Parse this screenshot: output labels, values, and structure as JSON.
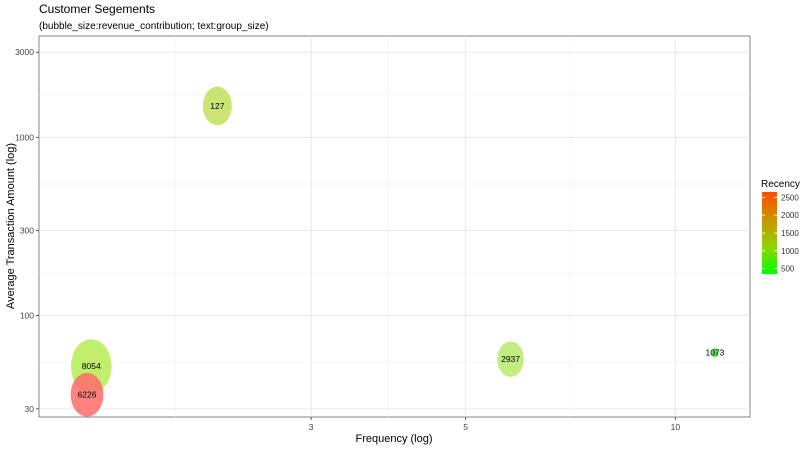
{
  "chart_data": {
    "type": "scatter",
    "title": "Customer Segements",
    "subtitle": "(bubble_size:revenue_contribution; text:group_size)",
    "xlabel": "Frequency (log)",
    "ylabel": "Average Transaction Amount (log)",
    "x_scale": "log",
    "y_scale": "log",
    "xlim": [
      1.22,
      12.8
    ],
    "ylim": [
      27,
      3700
    ],
    "x_ticks": [
      3,
      5,
      10
    ],
    "y_ticks": [
      30,
      100,
      300,
      1000,
      3000
    ],
    "grid": true,
    "legend": {
      "title": "Recency",
      "position": "right",
      "ticks": [
        500,
        1000,
        1500,
        2000,
        2500
      ],
      "range": [
        350,
        2650
      ],
      "colors": [
        "#00ff00",
        "#8fd400",
        "#c89600",
        "#ff4d00"
      ]
    },
    "points": [
      {
        "x": 2.2,
        "y": 1500,
        "group_size": 127,
        "revenue_contribution": 0.18,
        "recency": 700,
        "color": "#c2e05a"
      },
      {
        "x": 1.45,
        "y": 52,
        "group_size": 8054,
        "revenue_contribution": 0.35,
        "recency": 750,
        "color": "#b5ec55"
      },
      {
        "x": 1.43,
        "y": 36,
        "group_size": 6226,
        "revenue_contribution": 0.23,
        "recency": 2500,
        "color": "#ff6b6b"
      },
      {
        "x": 5.8,
        "y": 57,
        "group_size": 2937,
        "revenue_contribution": 0.15,
        "recency": 650,
        "color": "#b6ea6c"
      },
      {
        "x": 11.4,
        "y": 62,
        "group_size": 1073,
        "revenue_contribution": 0.01,
        "recency": 400,
        "color": "#33dd33"
      }
    ]
  }
}
